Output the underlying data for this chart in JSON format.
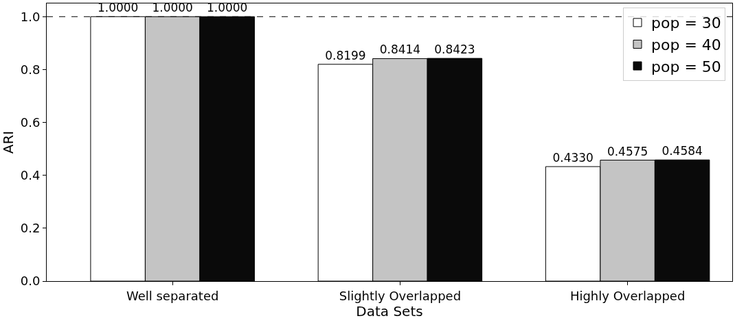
{
  "chart_data": {
    "type": "bar",
    "xlabel": "Data Sets",
    "ylabel": "ARI",
    "categories": [
      "Well separated",
      "Slightly Overlapped",
      "Highly Overlapped"
    ],
    "series": [
      {
        "name": "pop = 30",
        "color": "#ffffff",
        "values": [
          1.0,
          0.8199,
          0.433
        ],
        "value_labels": [
          "1.0000",
          "0.8199",
          "0.4330"
        ]
      },
      {
        "name": "pop = 40",
        "color": "#c4c4c4",
        "values": [
          1.0,
          0.8414,
          0.4575
        ],
        "value_labels": [
          "1.0000",
          "0.8414",
          "0.4575"
        ]
      },
      {
        "name": "pop = 50",
        "color": "#0a0a0a",
        "values": [
          1.0,
          0.8423,
          0.4584
        ],
        "value_labels": [
          "1.0000",
          "0.8423",
          "0.4584"
        ]
      }
    ],
    "ylim": [
      0,
      1.05
    ],
    "yticks": [
      {
        "value": 0,
        "label": "0.0"
      },
      {
        "value": 0.2,
        "label": "0.2"
      },
      {
        "value": 0.4,
        "label": "0.4"
      },
      {
        "value": 0.6,
        "label": "0.6"
      },
      {
        "value": 0.8,
        "label": "0.8"
      },
      {
        "value": 1.0,
        "label": "1.0"
      }
    ],
    "ref_lines": [
      {
        "axis": "y",
        "value": 1.0,
        "color": "#000000",
        "line_style": "dashed"
      }
    ],
    "legend": "top right"
  }
}
